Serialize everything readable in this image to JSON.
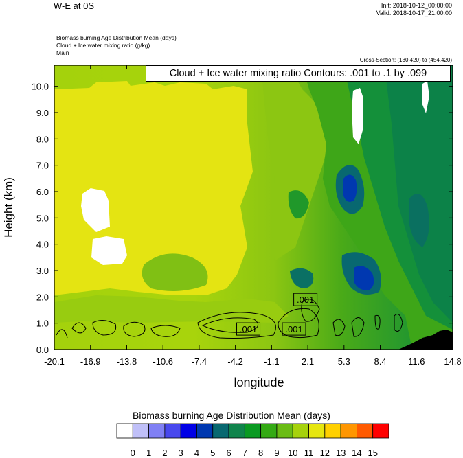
{
  "header": {
    "title": "W-E at 0S",
    "init": "Init: 2018-10-12_00:00:00",
    "valid": "Valid: 2018-10-17_21:00:00",
    "line1": "Biomass burning Age Distribution Mean    (days)",
    "line2": "Cloud + Ice water mixing ratio    (g/kg)",
    "line3": "Main",
    "cross_section": "Cross-Section: (130,420) to (454,420)",
    "contour_label": "Cloud + Ice water mixing ratio Contours: .001 to .1 by .099"
  },
  "chart_data": {
    "type": "heatmap",
    "xlabel": "longitude",
    "ylabel": "Height (km)",
    "xticks": [
      "-20.1",
      "-16.9",
      "-13.8",
      "-10.6",
      "-7.4",
      "-4.2",
      "-1.1",
      "2.1",
      "5.3",
      "8.4",
      "11.6",
      "14.8"
    ],
    "yticks": [
      "0.0",
      "1.0",
      "2.0",
      "3.0",
      "4.0",
      "5.0",
      "6.0",
      "7.0",
      "8.0",
      "9.0",
      "10.0"
    ],
    "xlim": [
      -20.1,
      14.8
    ],
    "ylim": [
      0,
      10.8
    ],
    "contour_labels": [
      {
        "text": ".001",
        "x": 1.9,
        "y": 1.9
      },
      {
        "text": ".001",
        "x": -3.1,
        "y": 0.78
      },
      {
        "text": ".001",
        "x": 0.9,
        "y": 0.78
      }
    ],
    "colorbar": {
      "title": "Biomass burning Age Distribution Mean  (days)",
      "labels": [
        "0",
        "1",
        "2",
        "3",
        "4",
        "5",
        "6",
        "7",
        "8",
        "9",
        "10",
        "11",
        "12",
        "13",
        "14",
        "15"
      ],
      "colors": [
        "#ffffff",
        "#c0c0f8",
        "#8080f4",
        "#4848ee",
        "#0000e6",
        "#0038b0",
        "#086870",
        "#10844c",
        "#0a9a22",
        "#34aa14",
        "#6abc14",
        "#a6d20c",
        "#e6e610",
        "#ffd000",
        "#ff9600",
        "#ff5a00",
        "#ff0000"
      ]
    }
  }
}
